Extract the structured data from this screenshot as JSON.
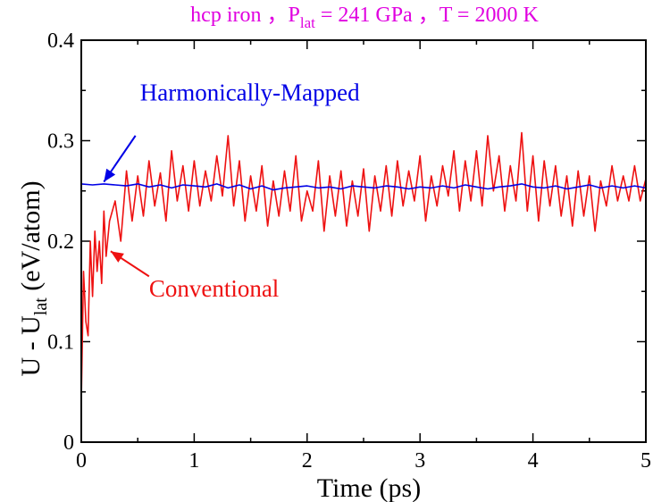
{
  "chart_data": {
    "type": "line",
    "title": {
      "prefix": "hcp iron ，P",
      "subscript": "lat",
      "suffix": " = 241 GPa ，T = 2000 K",
      "color": "#e000e0"
    },
    "xlabel": "Time   (ps)",
    "ylabel": {
      "prefix": "U - U",
      "subscript": "lat",
      "suffix": "   (eV/atom)"
    },
    "xlim": [
      0,
      5
    ],
    "ylim": [
      0,
      0.4
    ],
    "x_ticks": [
      0,
      1,
      2,
      3,
      4,
      5
    ],
    "x_tick_labels": [
      "0",
      "1",
      "2",
      "3",
      "4",
      "5"
    ],
    "y_ticks": [
      0,
      0.1,
      0.2,
      0.3,
      0.4
    ],
    "y_tick_labels": [
      "0",
      "0.1",
      "0.2",
      "0.3",
      "0.4"
    ],
    "grid": false,
    "legend": "none (series labelled by annotations with arrows)",
    "series": [
      {
        "name": "Harmonically-Mapped",
        "color": "#0000e6",
        "x": [
          0.0,
          0.1,
          0.2,
          0.3,
          0.4,
          0.5,
          0.6,
          0.7,
          0.8,
          0.9,
          1.0,
          1.1,
          1.2,
          1.3,
          1.4,
          1.5,
          1.6,
          1.7,
          1.8,
          1.9,
          2.0,
          2.1,
          2.2,
          2.3,
          2.4,
          2.5,
          2.6,
          2.7,
          2.8,
          2.9,
          3.0,
          3.1,
          3.2,
          3.3,
          3.4,
          3.5,
          3.6,
          3.7,
          3.8,
          3.9,
          4.0,
          4.1,
          4.2,
          4.3,
          4.4,
          4.5,
          4.6,
          4.7,
          4.8,
          4.9,
          5.0
        ],
        "y": [
          0.257,
          0.256,
          0.257,
          0.256,
          0.255,
          0.257,
          0.254,
          0.256,
          0.253,
          0.256,
          0.255,
          0.254,
          0.257,
          0.253,
          0.256,
          0.252,
          0.255,
          0.251,
          0.253,
          0.254,
          0.255,
          0.253,
          0.254,
          0.252,
          0.255,
          0.254,
          0.253,
          0.255,
          0.254,
          0.252,
          0.254,
          0.253,
          0.255,
          0.253,
          0.256,
          0.254,
          0.252,
          0.254,
          0.255,
          0.257,
          0.254,
          0.253,
          0.255,
          0.252,
          0.254,
          0.256,
          0.253,
          0.255,
          0.253,
          0.255,
          0.253
        ]
      },
      {
        "name": "Conventional",
        "color": "#ee1111",
        "x": [
          0.0,
          0.02,
          0.04,
          0.06,
          0.08,
          0.1,
          0.12,
          0.14,
          0.16,
          0.18,
          0.2,
          0.22,
          0.25,
          0.3,
          0.35,
          0.4,
          0.45,
          0.5,
          0.55,
          0.6,
          0.65,
          0.7,
          0.75,
          0.8,
          0.85,
          0.9,
          0.95,
          1.0,
          1.05,
          1.1,
          1.15,
          1.2,
          1.25,
          1.3,
          1.35,
          1.4,
          1.45,
          1.5,
          1.55,
          1.6,
          1.65,
          1.7,
          1.75,
          1.8,
          1.85,
          1.9,
          1.95,
          2.0,
          2.05,
          2.1,
          2.15,
          2.2,
          2.25,
          2.3,
          2.35,
          2.4,
          2.45,
          2.5,
          2.55,
          2.6,
          2.65,
          2.7,
          2.75,
          2.8,
          2.85,
          2.9,
          2.95,
          3.0,
          3.05,
          3.1,
          3.15,
          3.2,
          3.25,
          3.3,
          3.35,
          3.4,
          3.45,
          3.5,
          3.55,
          3.6,
          3.65,
          3.7,
          3.75,
          3.8,
          3.85,
          3.9,
          3.95,
          4.0,
          4.05,
          4.1,
          4.15,
          4.2,
          4.25,
          4.3,
          4.35,
          4.4,
          4.45,
          4.5,
          4.55,
          4.6,
          4.65,
          4.7,
          4.75,
          4.8,
          4.85,
          4.9,
          4.95,
          5.0
        ],
        "y": [
          0.04,
          0.17,
          0.12,
          0.106,
          0.2,
          0.145,
          0.21,
          0.17,
          0.2,
          0.158,
          0.23,
          0.185,
          0.22,
          0.24,
          0.2,
          0.27,
          0.22,
          0.265,
          0.225,
          0.28,
          0.235,
          0.268,
          0.22,
          0.29,
          0.24,
          0.275,
          0.23,
          0.28,
          0.235,
          0.27,
          0.24,
          0.285,
          0.245,
          0.305,
          0.235,
          0.28,
          0.22,
          0.265,
          0.23,
          0.275,
          0.215,
          0.26,
          0.225,
          0.27,
          0.23,
          0.285,
          0.22,
          0.25,
          0.23,
          0.28,
          0.21,
          0.265,
          0.225,
          0.27,
          0.215,
          0.26,
          0.225,
          0.272,
          0.21,
          0.265,
          0.23,
          0.275,
          0.225,
          0.28,
          0.235,
          0.27,
          0.24,
          0.285,
          0.22,
          0.265,
          0.235,
          0.275,
          0.245,
          0.29,
          0.23,
          0.28,
          0.24,
          0.29,
          0.235,
          0.305,
          0.25,
          0.285,
          0.23,
          0.275,
          0.24,
          0.308,
          0.23,
          0.285,
          0.22,
          0.28,
          0.235,
          0.275,
          0.225,
          0.265,
          0.215,
          0.27,
          0.225,
          0.265,
          0.21,
          0.26,
          0.235,
          0.275,
          0.24,
          0.265,
          0.24,
          0.275,
          0.24,
          0.262
        ]
      }
    ],
    "annotations": [
      {
        "text": "Harmonically-Mapped",
        "color": "#0000e6",
        "text_at": [
          0.52,
          0.34
        ],
        "arrow_from": [
          0.48,
          0.305
        ],
        "arrow_to": [
          0.2,
          0.259
        ]
      },
      {
        "text": "Conventional",
        "color": "#ee1111",
        "text_at": [
          0.6,
          0.145
        ],
        "arrow_from": [
          0.6,
          0.165
        ],
        "arrow_to": [
          0.26,
          0.19
        ]
      }
    ]
  }
}
